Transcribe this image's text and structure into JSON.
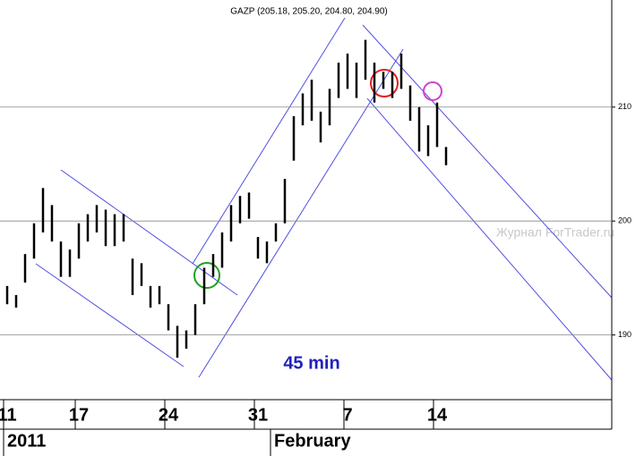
{
  "chart_data": {
    "type": "range-bar",
    "title": "GAZP (205.18, 205.20, 204.80, 204.90)",
    "annotations": [
      "45 min",
      "Журнал ForTrader.ru"
    ],
    "x": [
      0,
      0.5,
      1,
      1.5,
      2,
      2.5,
      3,
      3.5,
      4,
      4.5,
      5,
      5.5,
      6,
      6.5,
      7,
      7.5,
      8,
      8.5,
      9,
      9.5,
      10,
      10.5,
      11,
      11.5,
      12,
      12.5,
      13,
      13.5,
      14,
      14.5,
      15,
      15.5,
      16,
      16.5,
      17,
      17.5,
      18,
      18.5,
      19,
      19.5,
      20,
      20.5,
      21,
      21.5,
      22,
      22.5,
      23,
      23.5,
      24,
      24.5
    ],
    "series": [
      {
        "color": "#000000",
        "high": [
          194.3,
          193.5,
          197.1,
          199.8,
          202.9,
          201.4,
          198.2,
          197.5,
          199.8,
          200.6,
          201.4,
          201,
          200.6,
          200.6,
          196.7,
          196.3,
          194.3,
          194.3,
          192.7,
          190.8,
          190.4,
          192.7,
          195.9,
          197.1,
          199,
          201.4,
          202.2,
          202.5,
          198.6,
          198.2,
          199.8,
          203.7,
          209.2,
          211.2,
          212.4,
          209.6,
          211.6,
          213.9,
          214.7,
          213.9,
          215.9,
          213.9,
          213.1,
          213.1,
          214.7,
          211.9,
          210,
          208.4,
          210.4,
          206.5
        ],
        "low": [
          192.7,
          192.4,
          194.6,
          196.7,
          199,
          198.2,
          195.1,
          195.1,
          196.7,
          198.2,
          199,
          197.8,
          197.8,
          198.2,
          193.5,
          194.3,
          192.4,
          192.7,
          190.4,
          188,
          188.8,
          190,
          192.7,
          195.1,
          195.9,
          198.2,
          199.8,
          200.2,
          196.7,
          196.3,
          198.2,
          199.8,
          205.3,
          208.4,
          208.8,
          206.9,
          208.4,
          210.8,
          211.6,
          210.8,
          212.4,
          210.4,
          211.6,
          210.8,
          211.6,
          208.8,
          206.1,
          205.7,
          206.5,
          204.9
        ]
      }
    ],
    "xlim": [
      -0.4,
      33.75
    ],
    "xticks": [
      {
        "value": 0,
        "label": "11"
      },
      {
        "value": 4,
        "label": "17"
      },
      {
        "value": 9,
        "label": "24"
      },
      {
        "value": 14,
        "label": "31"
      },
      {
        "value": 19,
        "label": "7"
      },
      {
        "value": 24,
        "label": "14"
      }
    ],
    "xperiods": [
      {
        "value": 0,
        "label": "2011"
      },
      {
        "value": 14.9,
        "label": "February"
      }
    ],
    "ylim": [
      184.4,
      219.4
    ],
    "yticks": [
      190,
      200,
      210
    ],
    "grid": true
  }
}
